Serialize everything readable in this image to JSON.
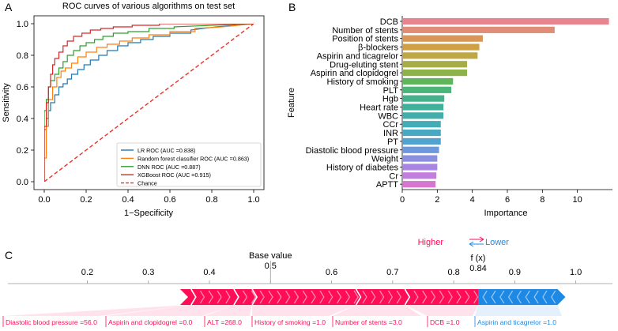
{
  "chart_data": [
    {
      "panel": "A",
      "type": "line",
      "title": "ROC curves of various algorithms on test set",
      "xlabel": "1−Specificity",
      "ylabel": "Sensitivity",
      "xlim": [
        0,
        1
      ],
      "ylim": [
        0,
        1
      ],
      "xticks": [
        "0.0",
        "0.2",
        "0.4",
        "0.6",
        "0.8",
        "1.0"
      ],
      "yticks": [
        "0.0",
        "0.2",
        "0.4",
        "0.6",
        "0.8",
        "1.0"
      ],
      "grid": false,
      "legend_position": "bottom-right",
      "series": [
        {
          "name": "LR ROC (AUC =0.838)",
          "color": "#1f77b4",
          "x": [
            0,
            0,
            0.01,
            0.01,
            0.02,
            0.02,
            0.03,
            0.03,
            0.05,
            0.05,
            0.07,
            0.07,
            0.09,
            0.09,
            0.11,
            0.11,
            0.13,
            0.13,
            0.16,
            0.16,
            0.19,
            0.19,
            0.22,
            0.22,
            0.26,
            0.26,
            0.3,
            0.3,
            0.35,
            0.35,
            0.4,
            0.4,
            0.46,
            0.46,
            0.52,
            0.52,
            0.6,
            0.6,
            0.7,
            0.7,
            0.82,
            1.0
          ],
          "y": [
            0,
            0.33,
            0.33,
            0.4,
            0.4,
            0.45,
            0.45,
            0.5,
            0.5,
            0.55,
            0.55,
            0.6,
            0.6,
            0.62,
            0.62,
            0.65,
            0.65,
            0.68,
            0.68,
            0.71,
            0.71,
            0.74,
            0.74,
            0.77,
            0.77,
            0.8,
            0.8,
            0.83,
            0.83,
            0.86,
            0.86,
            0.88,
            0.88,
            0.9,
            0.9,
            0.92,
            0.92,
            0.94,
            0.94,
            0.96,
            0.98,
            1.0
          ]
        },
        {
          "name": "Random forest classifier ROC (AUC =0.863)",
          "color": "#ff7f0e",
          "x": [
            0,
            0,
            0.01,
            0.01,
            0.02,
            0.02,
            0.04,
            0.04,
            0.06,
            0.06,
            0.08,
            0.08,
            0.1,
            0.1,
            0.13,
            0.13,
            0.16,
            0.16,
            0.2,
            0.2,
            0.25,
            0.25,
            0.3,
            0.3,
            0.36,
            0.36,
            0.42,
            0.42,
            0.5,
            0.5,
            0.6,
            0.6,
            0.72,
            0.72,
            0.85,
            1.0
          ],
          "y": [
            0,
            0.15,
            0.15,
            0.35,
            0.35,
            0.52,
            0.52,
            0.6,
            0.6,
            0.66,
            0.66,
            0.7,
            0.7,
            0.72,
            0.72,
            0.75,
            0.75,
            0.79,
            0.79,
            0.82,
            0.82,
            0.85,
            0.85,
            0.87,
            0.87,
            0.89,
            0.89,
            0.91,
            0.91,
            0.93,
            0.93,
            0.95,
            0.95,
            0.97,
            0.98,
            1.0
          ]
        },
        {
          "name": "DNN ROC (AUC =0.887)",
          "color": "#2ca02c",
          "x": [
            0,
            0,
            0.01,
            0.01,
            0.02,
            0.02,
            0.03,
            0.03,
            0.05,
            0.05,
            0.07,
            0.07,
            0.09,
            0.09,
            0.11,
            0.11,
            0.14,
            0.14,
            0.17,
            0.17,
            0.2,
            0.2,
            0.24,
            0.24,
            0.28,
            0.28,
            0.33,
            0.33,
            0.4,
            0.4,
            0.5,
            0.5,
            0.62,
            0.62,
            0.8,
            1.0
          ],
          "y": [
            0,
            0.45,
            0.45,
            0.52,
            0.52,
            0.6,
            0.6,
            0.64,
            0.64,
            0.68,
            0.68,
            0.72,
            0.72,
            0.76,
            0.76,
            0.8,
            0.8,
            0.83,
            0.83,
            0.86,
            0.86,
            0.88,
            0.88,
            0.9,
            0.9,
            0.92,
            0.92,
            0.94,
            0.94,
            0.95,
            0.95,
            0.97,
            0.97,
            0.98,
            0.99,
            1.0
          ]
        },
        {
          "name": "XGBoost ROC (AUC =0.915)",
          "color": "#d62728",
          "x": [
            0,
            0,
            0.01,
            0.01,
            0.02,
            0.02,
            0.03,
            0.03,
            0.04,
            0.04,
            0.05,
            0.05,
            0.07,
            0.07,
            0.09,
            0.09,
            0.11,
            0.11,
            0.14,
            0.14,
            0.18,
            0.18,
            0.22,
            0.22,
            0.27,
            0.27,
            0.33,
            0.33,
            0.42,
            0.42,
            0.55,
            0.55,
            0.7,
            0.7,
            0.85,
            1.0
          ],
          "y": [
            0,
            0.35,
            0.35,
            0.5,
            0.5,
            0.6,
            0.6,
            0.68,
            0.68,
            0.74,
            0.74,
            0.78,
            0.78,
            0.82,
            0.82,
            0.86,
            0.86,
            0.89,
            0.89,
            0.92,
            0.92,
            0.94,
            0.94,
            0.96,
            0.96,
            0.97,
            0.97,
            0.98,
            0.98,
            0.99,
            0.99,
            1.0,
            1.0,
            1.0,
            1.0,
            1.0
          ]
        },
        {
          "name": "Chance",
          "color": "#e8332a",
          "dashed": true,
          "x": [
            0,
            1
          ],
          "y": [
            0,
            1
          ]
        }
      ]
    },
    {
      "panel": "B",
      "type": "bar",
      "orientation": "horizontal",
      "xlabel": "Importance",
      "ylabel": "Feature",
      "xlim": [
        0,
        12
      ],
      "xticks": [
        "0",
        "2",
        "4",
        "6",
        "8",
        "10"
      ],
      "categories": [
        "DCB",
        "Number of stents",
        "Position of stents",
        "β-blockers",
        "Aspirin and ticagrelor",
        "Drug-eluting stent",
        "Aspirin and clopidogrel",
        "History of smoking",
        "PLT",
        "Hgb",
        "Heart rate",
        "WBC",
        "CCr",
        "INR",
        "PT",
        "Diastolic blood pressure",
        "Weight",
        "History of diabetes",
        "Cr",
        "APTT"
      ],
      "values": [
        11.8,
        8.7,
        4.6,
        4.4,
        4.3,
        3.7,
        3.7,
        2.9,
        2.8,
        2.4,
        2.35,
        2.35,
        2.2,
        2.2,
        2.2,
        2.1,
        2.0,
        2.0,
        1.95,
        1.9
      ],
      "colors": [
        "#e6858e",
        "#e08d77",
        "#d99757",
        "#cfa044",
        "#bfa844",
        "#a8ac46",
        "#8eb24a",
        "#5fb65a",
        "#4bb477",
        "#43b28a",
        "#3fb19b",
        "#41aeab",
        "#43acb7",
        "#48a8c2",
        "#52a2cf",
        "#6d99db",
        "#8b8fe2",
        "#a886e2",
        "#c27ddd",
        "#d677ce"
      ]
    },
    {
      "panel": "C",
      "type": "force",
      "base_value": 0.5,
      "output_value": 0.84,
      "base_label": "Base value",
      "output_label": "f (x)",
      "output_text": "0.84",
      "higher_label": "Higher",
      "lower_label": "Lower",
      "higher_color": "#ff0d57",
      "lower_color": "#1e88e5",
      "xlim": [
        0.07,
        1.06
      ],
      "xticks": [
        0.2,
        0.3,
        0.4,
        0.5,
        0.6,
        0.7,
        0.8,
        0.9,
        1.0
      ],
      "xtick_labels": [
        "0.2",
        "0.3",
        "0.4",
        "0.5",
        "0.6",
        "0.7",
        "0.8",
        "0.9",
        "1.0"
      ],
      "positive_range": [
        0.365,
        0.84
      ],
      "negative_range": [
        0.84,
        0.97
      ],
      "features": [
        {
          "label": "Diastolic blood pressure =56.0",
          "sign": "positive",
          "start": 0.365,
          "end": 0.37
        },
        {
          "label": "Aspirin and clopidogrel =0.0",
          "sign": "positive",
          "start": 0.37,
          "end": 0.44
        },
        {
          "label": "ALT =268.0",
          "sign": "positive",
          "start": 0.44,
          "end": 0.47
        },
        {
          "label": "History of smoking =1.0",
          "sign": "positive",
          "start": 0.47,
          "end": 0.64
        },
        {
          "label": "Number of stents =3.0",
          "sign": "positive",
          "start": 0.64,
          "end": 0.72
        },
        {
          "label": "DCB =1.0",
          "sign": "positive",
          "start": 0.72,
          "end": 0.84
        },
        {
          "label": "Aspirin and ticagrelor =1.0",
          "sign": "negative",
          "start": 0.84,
          "end": 0.97
        }
      ]
    }
  ],
  "panel_labels": [
    "A",
    "B",
    "C"
  ]
}
